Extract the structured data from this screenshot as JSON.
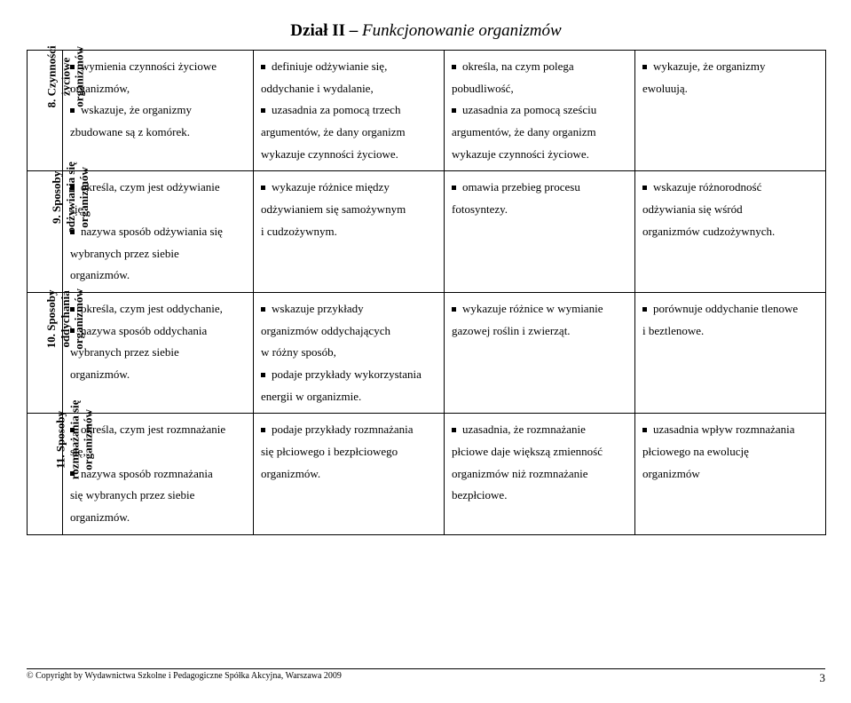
{
  "title_bold": "Dział II – ",
  "title_italic": "Funkcjonowanie organizmów",
  "rows": [
    {
      "label": "8. Czynności życiowe organizmów",
      "cells": [
        [
          {
            "b": true,
            "t": "wymienia czynności życiowe"
          },
          {
            "b": false,
            "t": "organizmów,"
          },
          {
            "b": true,
            "t": "wskazuje, że organizmy"
          },
          {
            "b": false,
            "t": "zbudowane są z komórek."
          }
        ],
        [
          {
            "b": true,
            "t": "definiuje odżywianie się,"
          },
          {
            "b": false,
            "t": "oddychanie i wydalanie,"
          },
          {
            "b": true,
            "t": "uzasadnia za pomocą trzech"
          },
          {
            "b": false,
            "t": "argumentów, że dany organizm"
          },
          {
            "b": false,
            "t": "wykazuje czynności życiowe."
          }
        ],
        [
          {
            "b": true,
            "t": "określa, na czym polega"
          },
          {
            "b": false,
            "t": "pobudliwość,"
          },
          {
            "b": true,
            "t": "uzasadnia za pomocą sześciu"
          },
          {
            "b": false,
            "t": "argumentów, że dany organizm"
          },
          {
            "b": false,
            "t": "wykazuje czynności życiowe."
          }
        ],
        [
          {
            "b": true,
            "t": "wykazuje, że organizmy"
          },
          {
            "b": false,
            "t": "ewoluują."
          }
        ]
      ]
    },
    {
      "label": "9. Sposoby odżywiania się organizmów",
      "cells": [
        [
          {
            "b": true,
            "t": "określa, czym jest odżywianie"
          },
          {
            "b": false,
            "t": "się,"
          },
          {
            "b": true,
            "t": "nazywa sposób odżywiania się"
          },
          {
            "b": false,
            "t": "wybranych przez siebie"
          },
          {
            "b": false,
            "t": "organizmów."
          }
        ],
        [
          {
            "b": true,
            "t": "wykazuje różnice między"
          },
          {
            "b": false,
            "t": "odżywianiem się samożywnym"
          },
          {
            "b": false,
            "t": "i cudzożywnym."
          }
        ],
        [
          {
            "b": true,
            "t": "omawia przebieg procesu"
          },
          {
            "b": false,
            "t": "fotosyntezy."
          }
        ],
        [
          {
            "b": true,
            "t": "wskazuje różnorodność"
          },
          {
            "b": false,
            "t": "odżywiania się wśród"
          },
          {
            "b": false,
            "t": "organizmów cudzożywnych."
          }
        ]
      ]
    },
    {
      "label": "10. Sposoby oddychania organizmów",
      "cells": [
        [
          {
            "b": true,
            "t": "określa, czym jest oddychanie,"
          },
          {
            "b": true,
            "t": "nazywa sposób oddychania"
          },
          {
            "b": false,
            "t": "wybranych przez siebie"
          },
          {
            "b": false,
            "t": "organizmów."
          }
        ],
        [
          {
            "b": true,
            "t": "wskazuje przykłady"
          },
          {
            "b": false,
            "t": "organizmów oddychających"
          },
          {
            "b": false,
            "t": "w różny sposób,"
          },
          {
            "b": true,
            "t": "podaje przykłady wykorzystania"
          },
          {
            "b": false,
            "t": "energii w organizmie."
          }
        ],
        [
          {
            "b": true,
            "t": "wykazuje różnice w wymianie"
          },
          {
            "b": false,
            "t": "gazowej roślin i zwierząt."
          }
        ],
        [
          {
            "b": true,
            "t": "porównuje oddychanie tlenowe"
          },
          {
            "b": false,
            "t": "i beztlenowe."
          }
        ]
      ]
    },
    {
      "label": "11. Sposoby rozmnażania się organizmów",
      "cells": [
        [
          {
            "b": true,
            "t": "określa, czym jest rozmnażanie"
          },
          {
            "b": false,
            "t": "się,"
          },
          {
            "b": true,
            "t": "nazywa sposób rozmnażania"
          },
          {
            "b": false,
            "t": "się wybranych przez siebie"
          },
          {
            "b": false,
            "t": "organizmów."
          }
        ],
        [
          {
            "b": true,
            "t": "podaje przykłady rozmnażania"
          },
          {
            "b": false,
            "t": "się płciowego i bezpłciowego"
          },
          {
            "b": false,
            "t": "organizmów."
          }
        ],
        [
          {
            "b": true,
            "t": "uzasadnia, że rozmnażanie"
          },
          {
            "b": false,
            "t": "płciowe daje większą zmienność"
          },
          {
            "b": false,
            "t": "organizmów niż rozmnażanie"
          },
          {
            "b": false,
            "t": "bezpłciowe."
          }
        ],
        [
          {
            "b": true,
            "t": "uzasadnia wpływ rozmnażania"
          },
          {
            "b": false,
            "t": "płciowego na ewolucję"
          },
          {
            "b": false,
            "t": "organizmów"
          }
        ]
      ]
    }
  ],
  "footer_copyright": "Copyright by Wydawnictwa Szkolne i Pedagogiczne Spółka Akcyjna, Warszawa 2009",
  "footer_page": "3"
}
